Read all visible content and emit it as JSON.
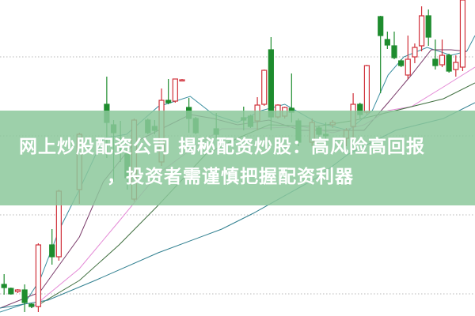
{
  "headline": {
    "line1": "网上炒股配资公司 揭秘配资炒股：高风险高回报",
    "line2": "，投资者需谨慎把握配资利器",
    "banner_color": "#8cc89b"
  },
  "chart_data": {
    "type": "candlestick",
    "title": "",
    "xlabel": "",
    "ylabel": "",
    "xlim": [
      -0.6,
      68.8
    ],
    "ylim": [
      0,
      400
    ],
    "grid": true,
    "grid_values": [
      328,
      228,
      128,
      28
    ],
    "colors": {
      "up": "#d0303a",
      "down": "#1e8c2e",
      "grid": "#b8b8b8"
    },
    "candles": [
      {
        "i": 0,
        "o": 40,
        "c": 36,
        "h": 53,
        "l": 27
      },
      {
        "i": 1,
        "o": 35,
        "c": 28,
        "h": 36,
        "l": 27
      },
      {
        "i": 2,
        "o": 31,
        "c": 33,
        "h": 34,
        "l": 29
      },
      {
        "i": 3,
        "o": 33,
        "c": 17,
        "h": 40,
        "l": 5
      },
      {
        "i": 4,
        "o": 15,
        "c": 12,
        "h": 16,
        "l": 10
      },
      {
        "i": 5,
        "o": 12,
        "c": 90,
        "h": 92,
        "l": 5
      },
      {
        "i": 7,
        "o": 90,
        "c": 75,
        "h": 110,
        "l": 65
      },
      {
        "i": 8,
        "o": 75,
        "c": 158,
        "h": 160,
        "l": 70
      },
      {
        "i": 11,
        "o": 160,
        "c": 230,
        "h": 232,
        "l": 142
      },
      {
        "i": 15,
        "o": 268,
        "c": 245,
        "h": 303,
        "l": 200
      },
      {
        "i": 16,
        "o": 242,
        "c": 232,
        "h": 248,
        "l": 170
      },
      {
        "i": 17,
        "o": 217,
        "c": 215,
        "h": 247,
        "l": 195
      },
      {
        "i": 18,
        "o": 205,
        "c": 175,
        "h": 220,
        "l": 160
      },
      {
        "i": 19,
        "o": 148,
        "c": 248,
        "h": 250,
        "l": 145
      },
      {
        "i": 21,
        "o": 248,
        "c": 232,
        "h": 250,
        "l": 230
      },
      {
        "i": 22,
        "o": 240,
        "c": 235,
        "h": 248,
        "l": 230
      },
      {
        "i": 23,
        "o": 195,
        "c": 273,
        "h": 288,
        "l": 190
      },
      {
        "i": 24,
        "o": 273,
        "c": 270,
        "h": 300,
        "l": 268
      },
      {
        "i": 25,
        "o": 272,
        "c": 300,
        "h": 300,
        "l": 270
      },
      {
        "i": 26,
        "o": 298,
        "c": 299,
        "h": 300,
        "l": 297
      },
      {
        "i": 27,
        "o": 264,
        "c": 250,
        "h": 276,
        "l": 232
      },
      {
        "i": 28,
        "o": 250,
        "c": 232,
        "h": 252,
        "l": 230
      },
      {
        "i": 31,
        "o": 237,
        "c": 230,
        "h": 257,
        "l": 225
      },
      {
        "i": 35,
        "o": 251,
        "c": 248,
        "h": 265,
        "l": 235
      },
      {
        "i": 36,
        "o": 253,
        "c": 240,
        "h": 255,
        "l": 238
      },
      {
        "i": 37,
        "o": 247,
        "c": 267,
        "h": 277,
        "l": 235
      },
      {
        "i": 38,
        "o": 268,
        "c": 311,
        "h": 312,
        "l": 266
      },
      {
        "i": 39,
        "o": 337,
        "c": 252,
        "h": 353,
        "l": 235
      },
      {
        "i": 40,
        "o": 252,
        "c": 267,
        "h": 268,
        "l": 250
      },
      {
        "i": 41,
        "o": 253,
        "c": 264,
        "h": 265,
        "l": 250
      },
      {
        "i": 42,
        "o": 263,
        "c": 258,
        "h": 307,
        "l": 245
      },
      {
        "i": 43,
        "o": 247,
        "c": 220,
        "h": 250,
        "l": 215
      },
      {
        "i": 45,
        "o": 220,
        "c": 245,
        "h": 250,
        "l": 215
      },
      {
        "i": 46,
        "o": 238,
        "c": 230,
        "h": 240,
        "l": 225
      },
      {
        "i": 47,
        "o": 230,
        "c": 228,
        "h": 245,
        "l": 220
      },
      {
        "i": 48,
        "o": 242,
        "c": 245,
        "h": 248,
        "l": 238
      },
      {
        "i": 50,
        "o": 225,
        "c": 235,
        "h": 238,
        "l": 215
      },
      {
        "i": 51,
        "o": 240,
        "c": 268,
        "h": 282,
        "l": 225
      },
      {
        "i": 52,
        "o": 268,
        "c": 255,
        "h": 270,
        "l": 250
      },
      {
        "i": 53,
        "o": 258,
        "c": 317,
        "h": 318,
        "l": 255
      },
      {
        "i": 55,
        "o": 379,
        "c": 355,
        "h": 380,
        "l": 282
      },
      {
        "i": 56,
        "o": 350,
        "c": 343,
        "h": 360,
        "l": 338
      },
      {
        "i": 57,
        "o": 342,
        "c": 327,
        "h": 360,
        "l": 325
      },
      {
        "i": 58,
        "o": 323,
        "c": 317,
        "h": 325,
        "l": 315
      },
      {
        "i": 59,
        "o": 305,
        "c": 325,
        "h": 355,
        "l": 300
      },
      {
        "i": 60,
        "o": 328,
        "c": 340,
        "h": 345,
        "l": 320
      },
      {
        "i": 61,
        "o": 342,
        "c": 380,
        "h": 392,
        "l": 335
      },
      {
        "i": 62,
        "o": 380,
        "c": 353,
        "h": 388,
        "l": 342
      },
      {
        "i": 63,
        "o": 325,
        "c": 317,
        "h": 350,
        "l": 312
      },
      {
        "i": 64,
        "o": 318,
        "c": 330,
        "h": 350,
        "l": 315
      },
      {
        "i": 65,
        "o": 330,
        "c": 310,
        "h": 332,
        "l": 308
      },
      {
        "i": 66,
        "o": 312,
        "c": 321,
        "h": 330,
        "l": 303
      },
      {
        "i": 67,
        "o": 315,
        "c": 400,
        "h": 400,
        "l": 310
      }
    ],
    "lines": [
      {
        "color": "#3a8ea0",
        "points": [
          [
            -0.6,
            5
          ],
          [
            2.9,
            15
          ],
          [
            5.2,
            45
          ],
          [
            8.1,
            110
          ],
          [
            11,
            160
          ],
          [
            14.5,
            225
          ],
          [
            17.9,
            230
          ],
          [
            22.5,
            265
          ],
          [
            27.2,
            278
          ],
          [
            30.6,
            255
          ],
          [
            34.1,
            245
          ],
          [
            37.6,
            260
          ],
          [
            41,
            268
          ],
          [
            45.7,
            245
          ],
          [
            50.3,
            235
          ],
          [
            53.8,
            260
          ],
          [
            56.1,
            305
          ],
          [
            58.4,
            328
          ],
          [
            61.8,
            340
          ],
          [
            65.3,
            330
          ],
          [
            67.6,
            335
          ],
          [
            68.8,
            355
          ]
        ]
      },
      {
        "color": "#7a3a6a",
        "points": [
          [
            -0.6,
            10
          ],
          [
            5.2,
            30
          ],
          [
            11,
            100
          ],
          [
            14.5,
            170
          ],
          [
            19.1,
            220
          ],
          [
            23.7,
            240
          ],
          [
            27.2,
            255
          ],
          [
            30.6,
            250
          ],
          [
            34.1,
            242
          ],
          [
            38.7,
            248
          ],
          [
            43.4,
            235
          ],
          [
            48,
            235
          ],
          [
            52.6,
            235
          ],
          [
            56.1,
            270
          ],
          [
            59.5,
            305
          ],
          [
            62.4,
            337
          ],
          [
            65.3,
            337
          ],
          [
            67.6,
            335
          ]
        ]
      },
      {
        "color": "#e48ad6",
        "points": [
          [
            4,
            10
          ],
          [
            11,
            60
          ],
          [
            16.8,
            120
          ],
          [
            22.5,
            180
          ],
          [
            27.2,
            210
          ],
          [
            31.8,
            237
          ],
          [
            36.4,
            237
          ],
          [
            43.4,
            240
          ],
          [
            48,
            232
          ],
          [
            52.6,
            242
          ],
          [
            56.1,
            260
          ],
          [
            59.5,
            265
          ],
          [
            64.2,
            290
          ],
          [
            68.8,
            315
          ]
        ]
      },
      {
        "color": "#3e6e3e",
        "points": [
          [
            5.2,
            15
          ],
          [
            11,
            45
          ],
          [
            16.8,
            90
          ],
          [
            22.5,
            140
          ],
          [
            29.5,
            205
          ],
          [
            34.1,
            225
          ],
          [
            38.7,
            242
          ],
          [
            45.7,
            240
          ],
          [
            51.4,
            248
          ],
          [
            57.2,
            260
          ],
          [
            64.2,
            275
          ],
          [
            68.8,
            295
          ]
        ]
      },
      {
        "color": "#2f7f8f",
        "points": [
          [
            -0.6,
            10
          ],
          [
            6.4,
            20
          ],
          [
            13.3,
            45
          ],
          [
            22.5,
            80
          ],
          [
            31.8,
            110
          ],
          [
            36.4,
            130
          ],
          [
            45.7,
            175
          ],
          [
            50.3,
            205
          ],
          [
            57.2,
            235
          ],
          [
            64.2,
            250
          ],
          [
            68.8,
            270
          ]
        ]
      }
    ]
  }
}
